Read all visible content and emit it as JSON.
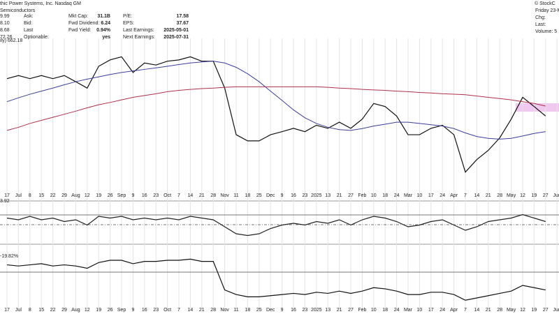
{
  "header": {
    "name": "thic Power Systems, Inc. Nasdaq GM",
    "sector": "Semiconductors",
    "brand": "© StockC",
    "quote": [
      {
        "value": "9.99",
        "label": "Ask:",
        "value2": "31.1B",
        "label2": "Mkt Cap:",
        "value3": "17.58",
        "label3": "P/E:"
      },
      {
        "value": "8.10",
        "label": "Bid:",
        "value2": "6.24",
        "label2": "Fwd Dividend:",
        "value3": "37.67",
        "label3": "EPS:"
      },
      {
        "value": "8.68",
        "label": "Last",
        "value2": "0.94%",
        "label2": "Fwd Yield:",
        "value3": "2025-05-01",
        "label3": "Last Earnings:"
      },
      {
        "value": "72.26",
        "label": "Optionable:",
        "value2": "yes",
        "label2": "",
        "value3": "2025-07-31",
        "label3": "Next Earnings:"
      }
    ],
    "sctr": "SCTR (LrgCap): 73.1",
    "right": [
      "Friday 23-M",
      "Chg:",
      "Last:",
      "Volume: 5"
    ]
  },
  "chart_data": [
    {
      "type": "line",
      "legend": "ily) 662.18",
      "categories": [
        "17",
        "Jul",
        "8",
        "15",
        "22",
        "29",
        "Aug",
        "12",
        "19",
        "26",
        "Sep",
        "9",
        "16",
        "23",
        "Oct",
        "7",
        "14",
        "21",
        "28",
        "Nov",
        "11",
        "18",
        "25",
        "Dec",
        "9",
        "16",
        "23",
        "2025",
        "13",
        "21",
        "27",
        "Feb",
        "10",
        "18",
        "24",
        "Mar",
        "10",
        "17",
        "24",
        "Apr",
        "7",
        "14",
        "21",
        "28",
        "May",
        "12",
        "19",
        "27",
        "Jun"
      ],
      "ylim": [
        430,
        1010
      ],
      "series": [
        {
          "name": "Price",
          "color": "#111111",
          "values": [
            853,
            865,
            853,
            865,
            853,
            865,
            841,
            816,
            901,
            926,
            938,
            877,
            914,
            906,
            921,
            926,
            938,
            921,
            921,
            816,
            634,
            610,
            610,
            634,
            646,
            659,
            646,
            671,
            659,
            683,
            659,
            695,
            756,
            744,
            707,
            634,
            634,
            659,
            671,
            634,
            488,
            537,
            573,
            622,
            695,
            780,
            744,
            707,
            null
          ]
        },
        {
          "name": "MA50",
          "color": "#3a3f9a",
          "values": [
            763,
            778,
            792,
            804,
            816,
            829,
            841,
            851,
            860,
            869,
            877,
            883,
            889,
            895,
            901,
            908,
            914,
            918,
            921,
            914,
            897,
            872,
            841,
            804,
            768,
            731,
            700,
            678,
            663,
            654,
            651,
            658,
            668,
            675,
            683,
            683,
            678,
            673,
            668,
            658,
            641,
            627,
            620,
            617,
            620,
            629,
            639,
            646,
            null
          ]
        },
        {
          "name": "MA200",
          "color": "#b0304a",
          "values": [
            651,
            663,
            678,
            690,
            702,
            714,
            726,
            739,
            751,
            760,
            770,
            780,
            787,
            794,
            802,
            807,
            811,
            814,
            816,
            819,
            821,
            821,
            821,
            821,
            821,
            821,
            821,
            821,
            819,
            816,
            814,
            811,
            809,
            807,
            804,
            802,
            799,
            797,
            794,
            792,
            790,
            785,
            780,
            775,
            770,
            763,
            756,
            746,
            null
          ]
        }
      ]
    },
    {
      "type": "line",
      "legend": "3.92",
      "ylim": [
        -10,
        10
      ],
      "series": [
        {
          "name": "Oscillator",
          "color": "#222222",
          "values": [
            3,
            2,
            4,
            2,
            3,
            1,
            2,
            -1,
            4,
            3,
            4,
            2,
            3,
            2,
            3,
            2,
            4,
            3,
            2,
            -2,
            -6,
            -7,
            -6,
            -3,
            -1,
            0,
            -1,
            1,
            0,
            2,
            -1,
            2,
            4,
            3,
            1,
            -2,
            -1,
            1,
            2,
            -1,
            -4,
            -2,
            1,
            2,
            3,
            5,
            3,
            1,
            null
          ]
        }
      ]
    },
    {
      "type": "line",
      "legend": "-19.82%",
      "ylim": [
        -45,
        10
      ],
      "series": [
        {
          "name": "Relative",
          "color": "#111111",
          "values": [
            -5,
            -6,
            -5,
            -4,
            -6,
            -5,
            -6,
            -8,
            -3,
            -1,
            -1,
            -4,
            -2,
            -2,
            -1,
            -1,
            0,
            -2,
            -2,
            -27,
            -31,
            -33,
            -33,
            -32,
            -31,
            -30,
            -31,
            -29,
            -30,
            -28,
            -30,
            -28,
            -25,
            -26,
            -28,
            -31,
            -31,
            -29,
            -29,
            -31,
            -36,
            -34,
            -32,
            -30,
            -28,
            -23,
            -25,
            -27,
            null
          ]
        }
      ]
    }
  ]
}
